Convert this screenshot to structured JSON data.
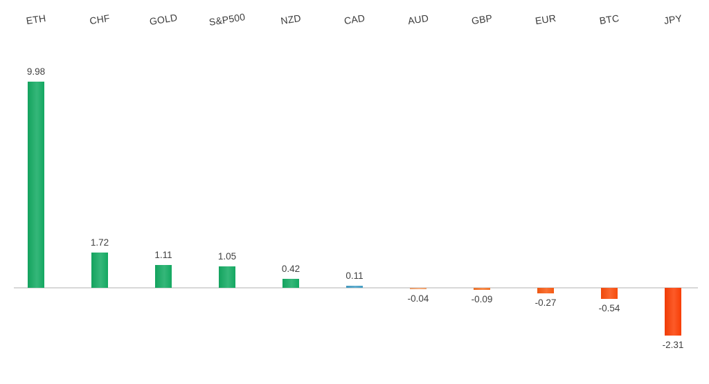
{
  "chart_data": {
    "type": "bar",
    "title": "",
    "xlabel": "",
    "ylabel": "",
    "categories": [
      "ETH",
      "CHF",
      "GOLD",
      "S&P500",
      "NZD",
      "CAD",
      "AUD",
      "GBP",
      "EUR",
      "BTC",
      "JPY"
    ],
    "values": [
      9.98,
      1.72,
      1.11,
      1.05,
      0.42,
      0.11,
      -0.04,
      -0.09,
      -0.27,
      -0.54,
      -2.31
    ],
    "data_labels": [
      "9.98",
      "1.72",
      "1.11",
      "1.05",
      "0.42",
      "0.11",
      "-0.04",
      "-0.09",
      "-0.27",
      "-0.54",
      "-2.31"
    ],
    "bar_colors": [
      "#14ab63",
      "#14ab63",
      "#14ab63",
      "#14ab63",
      "#14ab63",
      "#459fc6",
      "#f2a16c",
      "#f5762b",
      "#f95b13",
      "#fa4d0c",
      "#fc3f05"
    ],
    "positive_color": "#14ab63",
    "negative_color": "#fc3f05",
    "neutral_color": "#459fc6",
    "axis_line_color": "#d8d8d8",
    "label_color": "#404040",
    "ylim": [
      -2.31,
      9.98
    ],
    "grid": false,
    "legend": null,
    "category_label_rotation_deg": -9,
    "value_labels_position": "outside-end"
  }
}
